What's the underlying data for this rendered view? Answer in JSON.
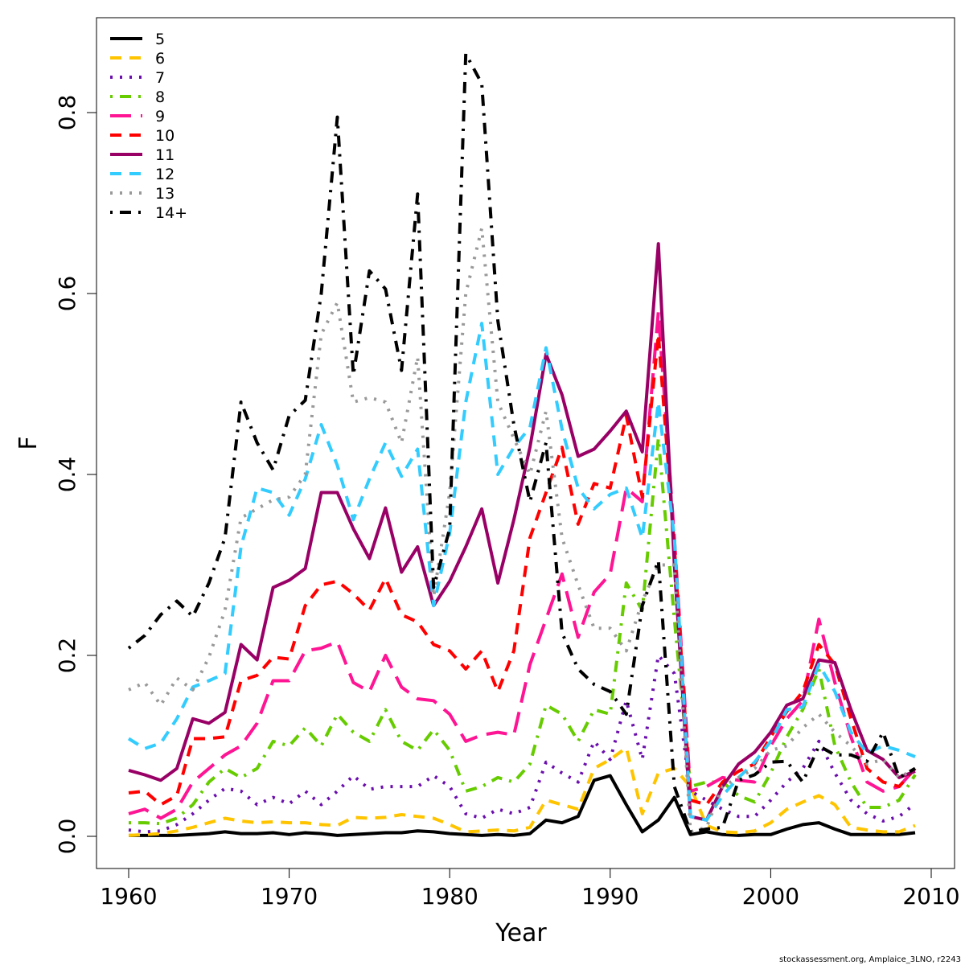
{
  "credit": "stockassessment.org, Amplaice_3LNO, r2243",
  "chart_data": {
    "type": "line",
    "xlabel": "Year",
    "ylabel": "F",
    "xlim": [
      1958,
      2010
    ],
    "ylim": [
      -0.02,
      0.9
    ],
    "xticks": [
      1960,
      1970,
      1980,
      1990,
      2000,
      2010
    ],
    "yticks": [
      0.0,
      0.2,
      0.4,
      0.6,
      0.8
    ],
    "ytick_labels": [
      "0.0",
      "0.2",
      "0.4",
      "0.6",
      "0.8"
    ],
    "legend_position": "top-left",
    "grid": false,
    "x": [
      1960,
      1961,
      1962,
      1963,
      1964,
      1965,
      1966,
      1967,
      1968,
      1969,
      1970,
      1971,
      1972,
      1973,
      1974,
      1975,
      1976,
      1977,
      1978,
      1979,
      1980,
      1981,
      1982,
      1983,
      1984,
      1985,
      1986,
      1987,
      1988,
      1989,
      1990,
      1991,
      1992,
      1993,
      1994,
      1995,
      1996,
      1997,
      1998,
      1999,
      2000,
      2001,
      2002,
      2003,
      2004,
      2005,
      2006,
      2007,
      2008,
      2009
    ],
    "series": [
      {
        "name": "5",
        "color": "#000000",
        "dash": "solid",
        "values": [
          0.001,
          0.001,
          0.001,
          0.001,
          0.002,
          0.003,
          0.005,
          0.003,
          0.003,
          0.004,
          0.002,
          0.004,
          0.003,
          0.001,
          0.002,
          0.003,
          0.004,
          0.004,
          0.006,
          0.005,
          0.003,
          0.002,
          0.001,
          0.002,
          0.001,
          0.003,
          0.018,
          0.015,
          0.022,
          0.062,
          0.067,
          0.035,
          0.005,
          0.018,
          0.043,
          0.002,
          0.005,
          0.002,
          0.001,
          0.002,
          0.002,
          0.008,
          0.013,
          0.015,
          0.008,
          0.002,
          0.002,
          0.002,
          0.002,
          0.004
        ]
      },
      {
        "name": "6",
        "color": "#ffc400",
        "dash": "dash",
        "values": [
          0.001,
          0.002,
          0.003,
          0.006,
          0.01,
          0.015,
          0.02,
          0.017,
          0.015,
          0.016,
          0.015,
          0.015,
          0.013,
          0.012,
          0.021,
          0.02,
          0.021,
          0.024,
          0.022,
          0.02,
          0.013,
          0.005,
          0.006,
          0.007,
          0.006,
          0.01,
          0.04,
          0.035,
          0.03,
          0.075,
          0.085,
          0.098,
          0.025,
          0.07,
          0.075,
          0.055,
          0.012,
          0.005,
          0.004,
          0.006,
          0.015,
          0.03,
          0.038,
          0.045,
          0.035,
          0.01,
          0.007,
          0.005,
          0.005,
          0.012
        ]
      },
      {
        "name": "7",
        "color": "#6a0dad",
        "dash": "dot",
        "values": [
          0.007,
          0.005,
          0.006,
          0.013,
          0.025,
          0.04,
          0.053,
          0.05,
          0.035,
          0.043,
          0.036,
          0.05,
          0.035,
          0.05,
          0.067,
          0.052,
          0.055,
          0.055,
          0.055,
          0.067,
          0.055,
          0.025,
          0.02,
          0.03,
          0.025,
          0.032,
          0.082,
          0.07,
          0.06,
          0.105,
          0.085,
          0.15,
          0.085,
          0.2,
          0.18,
          0.05,
          0.04,
          0.03,
          0.022,
          0.022,
          0.04,
          0.06,
          0.075,
          0.105,
          0.07,
          0.04,
          0.025,
          0.017,
          0.022,
          0.036
        ]
      },
      {
        "name": "8",
        "color": "#66cc00",
        "dash": "dashdot",
        "values": [
          0.015,
          0.015,
          0.014,
          0.02,
          0.035,
          0.06,
          0.075,
          0.065,
          0.075,
          0.105,
          0.1,
          0.12,
          0.1,
          0.135,
          0.115,
          0.105,
          0.14,
          0.105,
          0.095,
          0.118,
          0.095,
          0.05,
          0.055,
          0.065,
          0.06,
          0.08,
          0.145,
          0.135,
          0.105,
          0.14,
          0.135,
          0.28,
          0.25,
          0.44,
          0.24,
          0.055,
          0.06,
          0.06,
          0.045,
          0.038,
          0.07,
          0.11,
          0.14,
          0.185,
          0.1,
          0.06,
          0.032,
          0.032,
          0.04,
          0.068
        ]
      },
      {
        "name": "9",
        "color": "#ff1493",
        "dash": "longdash",
        "values": [
          0.025,
          0.03,
          0.02,
          0.03,
          0.06,
          0.075,
          0.09,
          0.1,
          0.125,
          0.172,
          0.172,
          0.205,
          0.208,
          0.215,
          0.17,
          0.16,
          0.2,
          0.165,
          0.152,
          0.15,
          0.135,
          0.105,
          0.112,
          0.115,
          0.112,
          0.19,
          0.24,
          0.29,
          0.22,
          0.27,
          0.29,
          0.385,
          0.37,
          0.58,
          0.33,
          0.05,
          0.055,
          0.065,
          0.062,
          0.06,
          0.1,
          0.13,
          0.15,
          0.24,
          0.17,
          0.11,
          0.06,
          0.05,
          0.055,
          0.075
        ]
      },
      {
        "name": "10",
        "color": "#ff0000",
        "dash": "dash",
        "values": [
          0.048,
          0.05,
          0.035,
          0.045,
          0.108,
          0.108,
          0.11,
          0.172,
          0.178,
          0.198,
          0.196,
          0.255,
          0.278,
          0.282,
          0.268,
          0.25,
          0.285,
          0.245,
          0.237,
          0.212,
          0.205,
          0.185,
          0.205,
          0.16,
          0.205,
          0.33,
          0.38,
          0.43,
          0.345,
          0.39,
          0.385,
          0.465,
          0.375,
          0.555,
          0.32,
          0.04,
          0.035,
          0.06,
          0.072,
          0.08,
          0.11,
          0.138,
          0.16,
          0.212,
          0.19,
          0.13,
          0.075,
          0.06,
          0.055,
          0.075
        ]
      },
      {
        "name": "11",
        "color": "#990066",
        "dash": "solid",
        "values": [
          0.073,
          0.068,
          0.062,
          0.075,
          0.13,
          0.125,
          0.137,
          0.212,
          0.195,
          0.275,
          0.283,
          0.296,
          0.38,
          0.38,
          0.34,
          0.307,
          0.363,
          0.292,
          0.32,
          0.255,
          0.282,
          0.32,
          0.362,
          0.28,
          0.35,
          0.43,
          0.533,
          0.488,
          0.42,
          0.428,
          0.448,
          0.47,
          0.425,
          0.655,
          0.3,
          0.022,
          0.018,
          0.055,
          0.08,
          0.093,
          0.115,
          0.145,
          0.152,
          0.195,
          0.192,
          0.14,
          0.095,
          0.085,
          0.065,
          0.072
        ]
      },
      {
        "name": "12",
        "color": "#33ccff",
        "dash": "dash",
        "values": [
          0.108,
          0.097,
          0.103,
          0.13,
          0.165,
          0.172,
          0.18,
          0.32,
          0.385,
          0.38,
          0.355,
          0.395,
          0.455,
          0.41,
          0.35,
          0.395,
          0.435,
          0.398,
          0.428,
          0.255,
          0.335,
          0.48,
          0.567,
          0.4,
          0.43,
          0.452,
          0.54,
          0.45,
          0.385,
          0.362,
          0.378,
          0.385,
          0.33,
          0.48,
          0.33,
          0.022,
          0.018,
          0.045,
          0.065,
          0.082,
          0.105,
          0.14,
          0.143,
          0.19,
          0.16,
          0.115,
          0.092,
          0.1,
          0.095,
          0.088
        ]
      },
      {
        "name": "13",
        "color": "#999999",
        "dash": "dot",
        "values": [
          0.162,
          0.17,
          0.145,
          0.175,
          0.162,
          0.198,
          0.25,
          0.352,
          0.362,
          0.372,
          0.375,
          0.4,
          0.555,
          0.59,
          0.48,
          0.485,
          0.48,
          0.435,
          0.53,
          0.265,
          0.38,
          0.6,
          0.672,
          0.48,
          0.44,
          0.4,
          0.47,
          0.33,
          0.278,
          0.23,
          0.23,
          0.205,
          0.26,
          0.3,
          0.3,
          0.005,
          0.01,
          0.055,
          0.065,
          0.075,
          0.095,
          0.1,
          0.12,
          0.135,
          0.115,
          0.1,
          0.08,
          0.085,
          0.065,
          0.075
        ]
      },
      {
        "name": "14+",
        "color": "#000000",
        "dash": "dashdot",
        "values": [
          0.208,
          0.222,
          0.245,
          0.26,
          0.243,
          0.28,
          0.33,
          0.48,
          0.435,
          0.405,
          0.465,
          0.482,
          0.6,
          0.795,
          0.51,
          0.625,
          0.605,
          0.515,
          0.71,
          0.275,
          0.34,
          0.865,
          0.832,
          0.57,
          0.455,
          0.37,
          0.435,
          0.225,
          0.185,
          0.168,
          0.16,
          0.135,
          0.255,
          0.305,
          0.055,
          0.005,
          0.008,
          0.01,
          0.062,
          0.068,
          0.082,
          0.083,
          0.06,
          0.1,
          0.09,
          0.09,
          0.083,
          0.115,
          0.065,
          0.075
        ]
      }
    ]
  }
}
